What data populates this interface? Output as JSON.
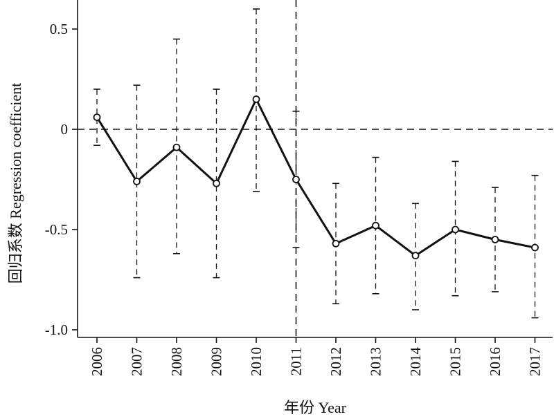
{
  "chart_data": {
    "type": "line",
    "title": "",
    "xlabel": "年份 Year",
    "ylabel": "回归系数 Regression coefficient",
    "ylim": [
      -1.05,
      0.65
    ],
    "yticks": [
      0.5,
      0,
      -0.5,
      -1.0
    ],
    "ytick_labels": [
      "0.5",
      "0",
      "-0.5",
      "-1.0"
    ],
    "categories": [
      "2006",
      "2007",
      "2008",
      "2009",
      "2010",
      "2011",
      "2012",
      "2013",
      "2014",
      "2015",
      "2016",
      "2017"
    ],
    "series": [
      {
        "values": [
          0.06,
          -0.26,
          -0.09,
          -0.27,
          0.15,
          -0.25,
          -0.57,
          -0.48,
          -0.63,
          -0.5,
          -0.55,
          -0.59
        ],
        "ci_lower": [
          -0.08,
          -0.74,
          -0.62,
          -0.74,
          -0.31,
          -0.59,
          -0.87,
          -0.82,
          -0.9,
          -0.83,
          -0.81,
          -0.94
        ],
        "ci_upper": [
          0.2,
          0.22,
          0.45,
          0.2,
          0.6,
          0.09,
          -0.27,
          -0.14,
          -0.37,
          -0.16,
          -0.29,
          -0.23
        ]
      }
    ],
    "reference_lines": {
      "horizontal_y": 0,
      "vertical_category": "2011"
    },
    "grid": false,
    "legend": "none",
    "colors": {
      "line": "#111111"
    }
  }
}
